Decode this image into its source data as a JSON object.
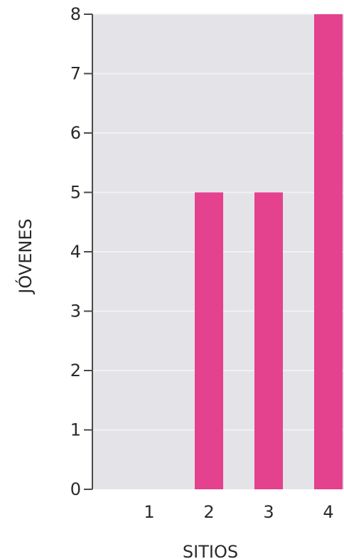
{
  "chart_data": {
    "type": "bar",
    "categories": [
      "1",
      "2",
      "3",
      "4"
    ],
    "values": [
      0,
      5,
      5,
      8
    ],
    "title": "",
    "xlabel": "SITIOS",
    "ylabel": "JÓVENES",
    "ylim": [
      0,
      8
    ],
    "yticks": [
      "0",
      "1",
      "2",
      "3",
      "4",
      "5",
      "6",
      "7",
      "8"
    ],
    "grid": true,
    "bar_color": "#e4418f",
    "plot_background": "#e3e3e8"
  }
}
